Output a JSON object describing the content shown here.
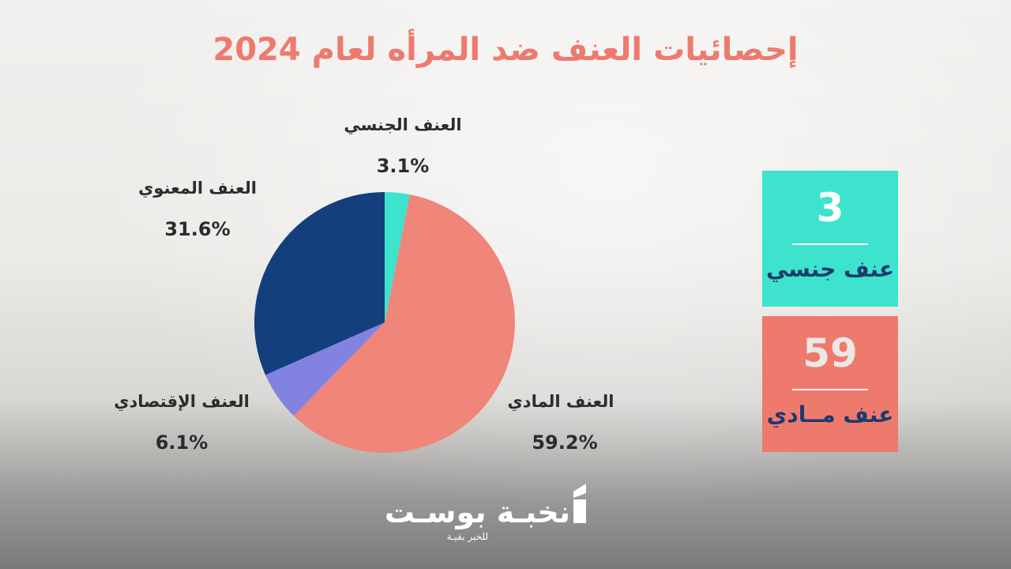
{
  "title": "إحصائيات العنف ضد المرأه لعام 2024",
  "chart_data": {
    "type": "pie",
    "title": "إحصائيات العنف ضد المرأه لعام 2024",
    "slices": [
      {
        "label": "العنف الجنسي",
        "value": 3.1,
        "display": "3.1%",
        "color": "#3de3cc"
      },
      {
        "label": "العنف المادي",
        "value": 59.2,
        "display": "59.2%",
        "color": "#f0857a"
      },
      {
        "label": "العنف الإقتصادي",
        "value": 6.1,
        "display": "6.1%",
        "color": "#8283e1"
      },
      {
        "label": "العنف المعنوي",
        "value": 31.6,
        "display": "31.6%",
        "color": "#143f7d"
      }
    ]
  },
  "cards": [
    {
      "number": "3",
      "text": "عنف جنسي",
      "bg": "#3de3cc",
      "num_color": "#ffffff",
      "text_color": "#1a3a6e"
    },
    {
      "number": "59",
      "text": "عنف مــادي",
      "bg": "#ee7a6e",
      "num_color": "#ece8e6",
      "text_color": "#1a3a6e"
    }
  ],
  "logo": {
    "name": "نخبـة بوسـت",
    "tagline": "للخبر بقيـة"
  }
}
